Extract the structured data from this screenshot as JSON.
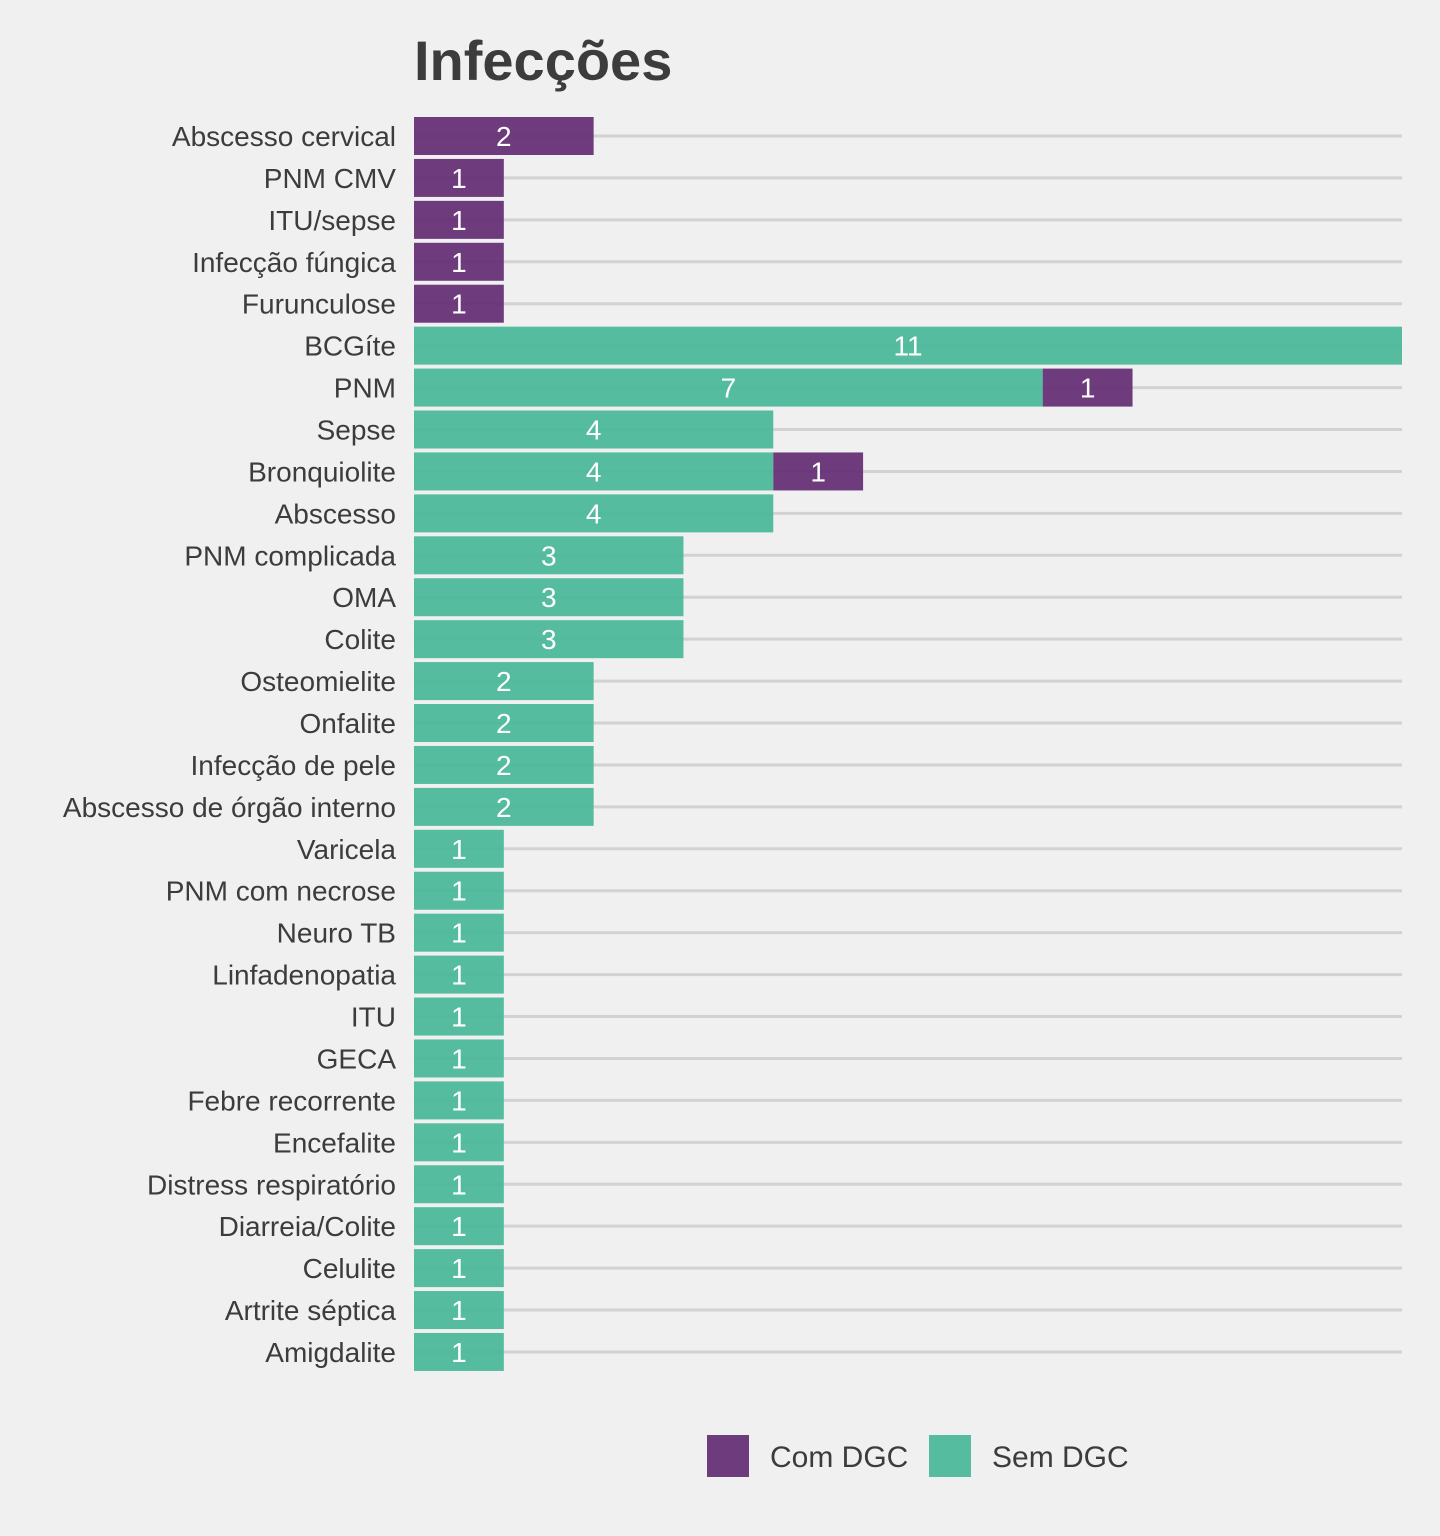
{
  "chart_data": {
    "type": "bar",
    "orientation": "horizontal",
    "stacked": true,
    "title": "Infecções",
    "categories": [
      "Abscesso cervical",
      "PNM CMV",
      "ITU/sepse",
      "Infecção fúngica",
      "Furunculose",
      "BCGíte",
      "PNM",
      "Sepse",
      "Bronquiolite",
      "Abscesso",
      "PNM complicada",
      "OMA",
      "Colite",
      "Osteomielite",
      "Onfalite",
      "Infecção de pele",
      "Abscesso de órgão interno",
      "Varicela",
      "PNM com necrose",
      "Neuro TB",
      "Linfadenopatia",
      "ITU",
      "GECA",
      "Febre recorrente",
      "Encefalite",
      "Distress respiratório",
      "Diarreia/Colite",
      "Celulite",
      "Artrite séptica",
      "Amigdalite"
    ],
    "series": [
      {
        "name": "Sem DGC",
        "color": "#4cb89b",
        "values": [
          0,
          0,
          0,
          0,
          0,
          11,
          7,
          4,
          4,
          4,
          3,
          3,
          3,
          2,
          2,
          2,
          2,
          1,
          1,
          1,
          1,
          1,
          1,
          1,
          1,
          1,
          1,
          1,
          1,
          1
        ]
      },
      {
        "name": "Com DGC",
        "color": "#663276",
        "values": [
          2,
          1,
          1,
          1,
          1,
          0,
          1,
          0,
          1,
          0,
          0,
          0,
          0,
          0,
          0,
          0,
          0,
          0,
          0,
          0,
          0,
          0,
          0,
          0,
          0,
          0,
          0,
          0,
          0,
          0
        ]
      }
    ],
    "stack_order": [
      "Sem DGC",
      "Com DGC"
    ],
    "legend": {
      "placement": "bottom",
      "entries": [
        {
          "name": "Com DGC",
          "color": "#663276"
        },
        {
          "name": "Sem DGC",
          "color": "#4cb89b"
        }
      ]
    },
    "xlim": [
      0,
      11
    ],
    "grid": true,
    "x_axis_visible": false,
    "bar_opacity": 0.95
  }
}
